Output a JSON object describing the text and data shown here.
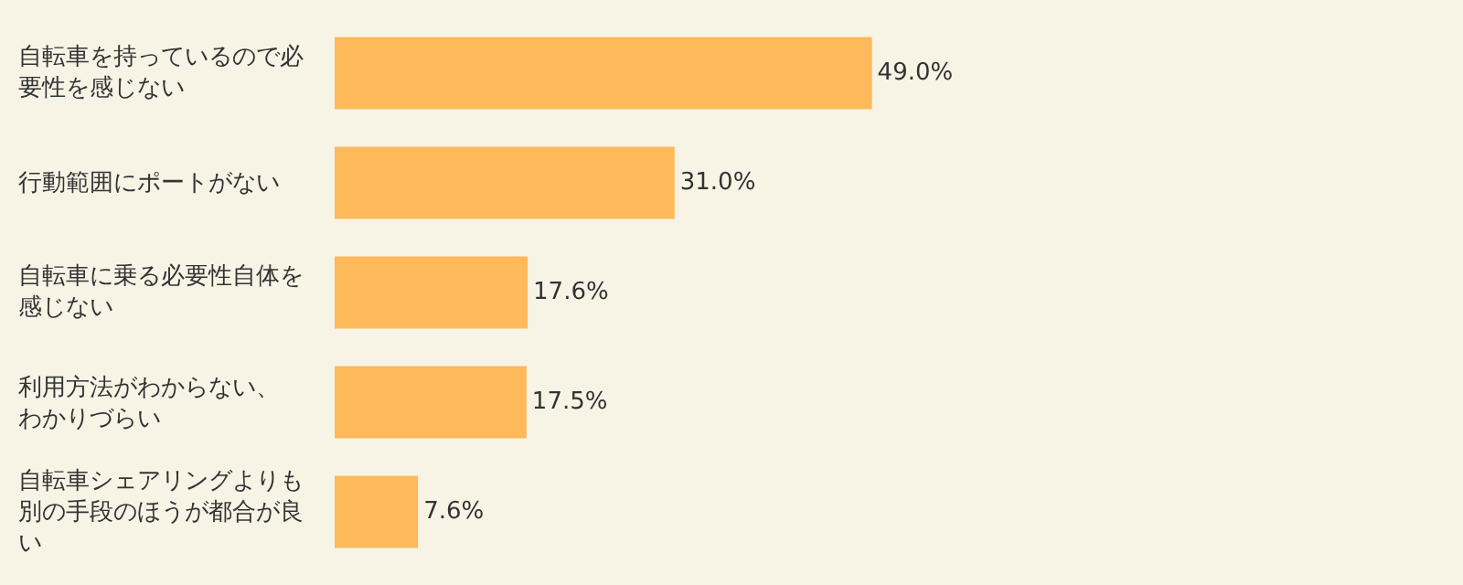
{
  "chart_data": {
    "type": "bar",
    "orientation": "horizontal",
    "categories": [
      "自転車を持っているので必要性を感じない",
      "行動範囲にポートがない",
      "自転車に乗る必要性自体を感じない",
      "利用方法がわからない、わかりづらい",
      "自転車シェアリングよりも別の手段のほうが都合が良い"
    ],
    "values": [
      49.0,
      31.0,
      17.6,
      17.5,
      7.6
    ],
    "value_labels": [
      "49.0%",
      "31.0%",
      "17.6%",
      "17.5%",
      "7.6%"
    ],
    "color": "#fdb95a",
    "grid": false,
    "legend": false
  }
}
